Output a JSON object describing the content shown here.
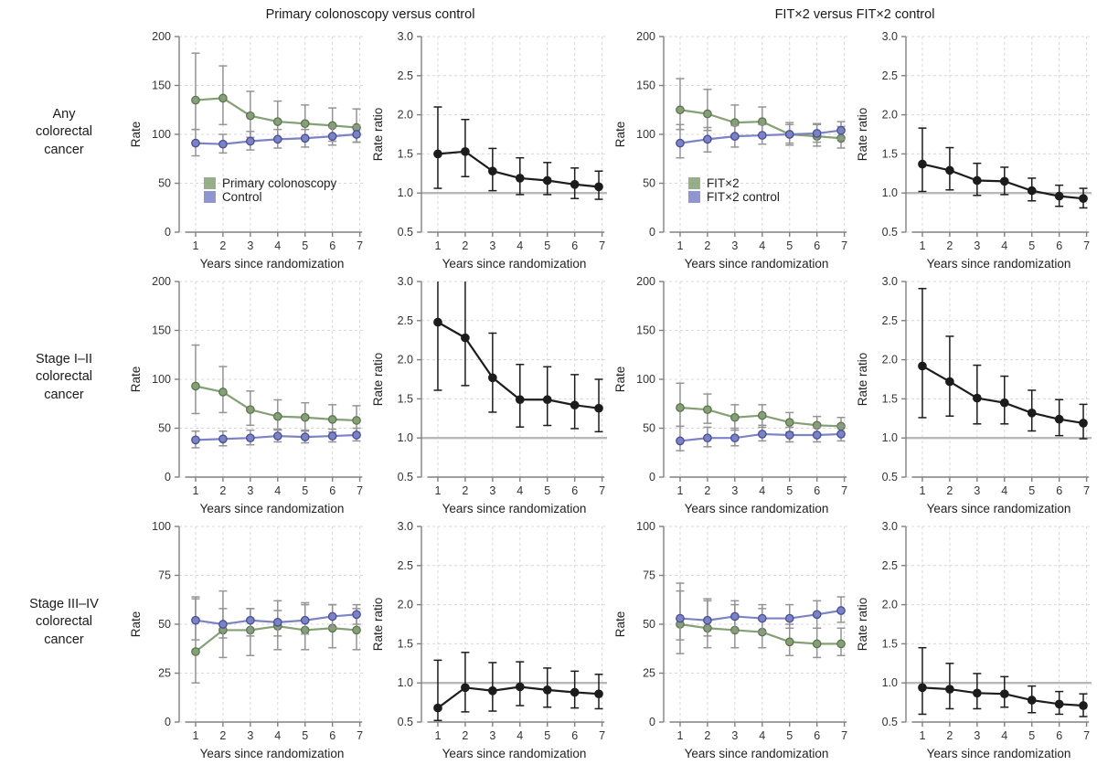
{
  "figure": {
    "group_titles": [
      "Primary colonoscopy versus control",
      "FIT×2 versus FIT×2 control"
    ],
    "row_labels": [
      "Any\ncolorectal\ncancer",
      "Stage I–II\ncolorectal\ncancer",
      "Stage III–IV\ncolorectal\ncancer"
    ],
    "colors": {
      "green": "#85a076",
      "green_marker_edge": "#5c7550",
      "blue": "#7b83c5",
      "blue_marker_fill": "#6f78bf",
      "blue_marker_edge": "#454e96",
      "black": "#1c1c1c",
      "error_gray": "#949494",
      "refline_gray": "#b8b8b8",
      "grid": "#d8d8d8",
      "axis": "#808080"
    }
  },
  "chart_data": [
    {
      "type": "line",
      "row": "Any colorectal cancer",
      "panel": "rate",
      "xlabel": "Years since randomization",
      "ylabel": "Rate",
      "x": [
        1,
        2,
        3,
        4,
        5,
        6,
        7
      ],
      "x_positions": [
        1,
        2,
        3,
        4,
        5,
        6,
        6.88
      ],
      "ylim": [
        0,
        200
      ],
      "yticks": [
        0,
        50,
        100,
        150,
        200
      ],
      "ydec": 0,
      "refline": null,
      "legend": {
        "x": 1.3,
        "y": [
          50,
          36
        ]
      },
      "series": [
        {
          "name": "Primary colonoscopy",
          "color": "#85a076",
          "medge": "#5c7550",
          "ecolor": "#949494",
          "values": [
            135,
            137,
            119,
            113,
            111,
            109,
            107
          ],
          "lower": [
            105,
            110,
            97,
            96,
            95,
            93,
            92
          ],
          "upper": [
            183,
            170,
            144,
            134,
            130,
            127,
            126
          ]
        },
        {
          "name": "Control",
          "color": "#7b83c5",
          "medge": "#454e96",
          "ecolor": "#949494",
          "values": [
            91,
            90,
            93,
            95,
            96,
            98,
            100
          ],
          "lower": [
            78,
            81,
            84,
            86,
            87,
            89,
            92
          ],
          "upper": [
            105,
            100,
            103,
            105,
            105,
            107,
            109
          ]
        }
      ]
    },
    {
      "type": "line",
      "row": "Any colorectal cancer",
      "panel": "rate ratio",
      "xlabel": "Years since randomization",
      "ylabel": "Rate ratio",
      "x": [
        1,
        2,
        3,
        4,
        5,
        6,
        7
      ],
      "x_positions": [
        1,
        2,
        3,
        4,
        5,
        6,
        6.88
      ],
      "ylim": [
        0.5,
        3.0
      ],
      "yticks": [
        0.5,
        1.0,
        1.5,
        2.0,
        2.5,
        3.0
      ],
      "ydec": 1,
      "refline": 1.0,
      "legend": null,
      "series": [
        {
          "name": "Rate ratio",
          "color": "#1c1c1c",
          "medge": "#1c1c1c",
          "ecolor": "#1c1c1c",
          "values": [
            1.5,
            1.53,
            1.28,
            1.19,
            1.16,
            1.11,
            1.08
          ],
          "lower": [
            1.06,
            1.21,
            1.03,
            0.98,
            0.98,
            0.93,
            0.92
          ],
          "upper": [
            2.1,
            1.94,
            1.57,
            1.45,
            1.39,
            1.32,
            1.28
          ]
        }
      ]
    },
    {
      "type": "line",
      "row": "Any colorectal cancer",
      "panel": "rate",
      "xlabel": "Years since randomization",
      "ylabel": "Rate",
      "x": [
        1,
        2,
        3,
        4,
        5,
        6,
        7
      ],
      "x_positions": [
        1,
        2,
        3,
        4,
        5,
        6,
        6.88
      ],
      "ylim": [
        0,
        200
      ],
      "yticks": [
        0,
        50,
        100,
        150,
        200
      ],
      "ydec": 0,
      "refline": null,
      "legend": {
        "x": 1.3,
        "y": [
          50,
          36
        ]
      },
      "series": [
        {
          "name": "FIT×2",
          "color": "#85a076",
          "medge": "#5c7550",
          "ecolor": "#949494",
          "values": [
            125,
            121,
            112,
            113,
            100,
            98,
            96
          ],
          "lower": [
            105,
            104,
            96,
            98,
            89,
            88,
            86
          ],
          "upper": [
            157,
            146,
            130,
            128,
            112,
            110,
            108
          ]
        },
        {
          "name": "FIT×2 control",
          "color": "#7b83c5",
          "medge": "#454e96",
          "ecolor": "#949494",
          "values": [
            91,
            95,
            98,
            99,
            100,
            101,
            104
          ],
          "lower": [
            76,
            82,
            87,
            90,
            91,
            92,
            95
          ],
          "upper": [
            110,
            107,
            109,
            110,
            110,
            111,
            113
          ]
        }
      ]
    },
    {
      "type": "line",
      "row": "Any colorectal cancer",
      "panel": "rate ratio",
      "xlabel": "Years since randomization",
      "ylabel": "Rate ratio",
      "x": [
        1,
        2,
        3,
        4,
        5,
        6,
        7
      ],
      "x_positions": [
        1,
        2,
        3,
        4,
        5,
        6,
        6.88
      ],
      "ylim": [
        0.5,
        3.0
      ],
      "yticks": [
        0.5,
        1.0,
        1.5,
        2.0,
        2.5,
        3.0
      ],
      "ydec": 1,
      "refline": 1.0,
      "legend": null,
      "series": [
        {
          "name": "Rate ratio",
          "color": "#1c1c1c",
          "medge": "#1c1c1c",
          "ecolor": "#1c1c1c",
          "values": [
            1.37,
            1.29,
            1.16,
            1.15,
            1.03,
            0.96,
            0.93
          ],
          "lower": [
            1.02,
            1.04,
            0.97,
            0.98,
            0.9,
            0.83,
            0.81
          ],
          "upper": [
            1.83,
            1.58,
            1.38,
            1.33,
            1.19,
            1.1,
            1.06
          ]
        }
      ]
    },
    {
      "type": "line",
      "row": "Stage I–II colorectal cancer",
      "panel": "rate",
      "xlabel": "Years since randomization",
      "ylabel": "Rate",
      "x": [
        1,
        2,
        3,
        4,
        5,
        6,
        7
      ],
      "x_positions": [
        1,
        2,
        3,
        4,
        5,
        6,
        6.88
      ],
      "ylim": [
        0,
        200
      ],
      "yticks": [
        0,
        50,
        100,
        150,
        200
      ],
      "ydec": 0,
      "refline": null,
      "legend": null,
      "series": [
        {
          "name": "Primary colonoscopy",
          "color": "#85a076",
          "medge": "#5c7550",
          "ecolor": "#949494",
          "values": [
            93,
            87,
            69,
            62,
            61,
            59,
            58
          ],
          "lower": [
            65,
            66,
            53,
            48,
            47,
            46,
            45
          ],
          "upper": [
            135,
            113,
            88,
            79,
            76,
            74,
            73
          ]
        },
        {
          "name": "Control",
          "color": "#7b83c5",
          "medge": "#454e96",
          "ecolor": "#949494",
          "values": [
            38,
            39,
            40,
            42,
            41,
            42,
            43
          ],
          "lower": [
            30,
            32,
            33,
            36,
            35,
            36,
            37
          ],
          "upper": [
            47,
            47,
            48,
            49,
            48,
            49,
            50
          ]
        }
      ]
    },
    {
      "type": "line",
      "row": "Stage I–II colorectal cancer",
      "panel": "rate ratio",
      "xlabel": "Years since randomization",
      "ylabel": "Rate ratio",
      "x": [
        1,
        2,
        3,
        4,
        5,
        6,
        7
      ],
      "x_positions": [
        1,
        2,
        3,
        4,
        5,
        6,
        6.88
      ],
      "ylim": [
        0.5,
        3.0
      ],
      "yticks": [
        0.5,
        1.0,
        1.5,
        2.0,
        2.5,
        3.0
      ],
      "ydec": 1,
      "refline": 1.0,
      "legend": null,
      "series": [
        {
          "name": "Rate ratio",
          "color": "#1c1c1c",
          "medge": "#1c1c1c",
          "ecolor": "#1c1c1c",
          "values": [
            2.48,
            2.28,
            1.77,
            1.49,
            1.49,
            1.42,
            1.38
          ],
          "lower": [
            1.61,
            1.67,
            1.33,
            1.14,
            1.16,
            1.12,
            1.08
          ],
          "upper": [
            3.02,
            3.1,
            2.34,
            1.94,
            1.91,
            1.81,
            1.75
          ]
        }
      ]
    },
    {
      "type": "line",
      "row": "Stage I–II colorectal cancer",
      "panel": "rate",
      "xlabel": "Years since randomization",
      "ylabel": "Rate",
      "x": [
        1,
        2,
        3,
        4,
        5,
        6,
        7
      ],
      "x_positions": [
        1,
        2,
        3,
        4,
        5,
        6,
        6.88
      ],
      "ylim": [
        0,
        200
      ],
      "yticks": [
        0,
        50,
        100,
        150,
        200
      ],
      "ydec": 0,
      "refline": null,
      "legend": null,
      "series": [
        {
          "name": "FIT×2",
          "color": "#85a076",
          "medge": "#5c7550",
          "ecolor": "#949494",
          "values": [
            71,
            69,
            61,
            63,
            56,
            53,
            52
          ],
          "lower": [
            52,
            55,
            48,
            51,
            46,
            44,
            43
          ],
          "upper": [
            96,
            85,
            74,
            74,
            66,
            62,
            61
          ]
        },
        {
          "name": "FIT×2 control",
          "color": "#7b83c5",
          "medge": "#454e96",
          "ecolor": "#949494",
          "values": [
            37,
            40,
            40,
            44,
            43,
            43,
            44
          ],
          "lower": [
            27,
            31,
            32,
            37,
            36,
            36,
            37
          ],
          "upper": [
            52,
            51,
            50,
            53,
            51,
            51,
            52
          ]
        }
      ]
    },
    {
      "type": "line",
      "row": "Stage I–II colorectal cancer",
      "panel": "rate ratio",
      "xlabel": "Years since randomization",
      "ylabel": "Rate ratio",
      "x": [
        1,
        2,
        3,
        4,
        5,
        6,
        7
      ],
      "x_positions": [
        1,
        2,
        3,
        4,
        5,
        6,
        6.88
      ],
      "ylim": [
        0.5,
        3.0
      ],
      "yticks": [
        0.5,
        1.0,
        1.5,
        2.0,
        2.5,
        3.0
      ],
      "ydec": 1,
      "refline": 1.0,
      "legend": null,
      "series": [
        {
          "name": "Rate ratio",
          "color": "#1c1c1c",
          "medge": "#1c1c1c",
          "ecolor": "#1c1c1c",
          "values": [
            1.92,
            1.72,
            1.51,
            1.45,
            1.32,
            1.24,
            1.19
          ],
          "lower": [
            1.26,
            1.28,
            1.18,
            1.18,
            1.09,
            1.03,
            0.99
          ],
          "upper": [
            2.91,
            2.3,
            1.93,
            1.79,
            1.61,
            1.49,
            1.43
          ]
        }
      ]
    },
    {
      "type": "line",
      "row": "Stage III–IV colorectal cancer",
      "panel": "rate",
      "xlabel": "Years since randomization",
      "ylabel": "Rate",
      "x": [
        1,
        2,
        3,
        4,
        5,
        6,
        7
      ],
      "x_positions": [
        1,
        2,
        3,
        4,
        5,
        6,
        6.88
      ],
      "ylim": [
        0,
        100
      ],
      "yticks": [
        0,
        25,
        50,
        75,
        100
      ],
      "ydec": 0,
      "refline": null,
      "legend": null,
      "series": [
        {
          "name": "Primary colonoscopy",
          "color": "#85a076",
          "medge": "#5c7550",
          "ecolor": "#949494",
          "values": [
            36,
            47,
            47,
            49,
            47,
            48,
            47
          ],
          "lower": [
            20,
            33,
            34,
            37,
            37,
            38,
            37
          ],
          "upper": [
            63,
            67,
            58,
            62,
            61,
            60,
            58
          ]
        },
        {
          "name": "Control",
          "color": "#7b83c5",
          "medge": "#454e96",
          "ecolor": "#949494",
          "values": [
            52,
            50,
            52,
            51,
            52,
            54,
            55
          ],
          "lower": [
            42,
            43,
            44,
            44,
            45,
            48,
            50
          ],
          "upper": [
            64,
            58,
            58,
            57,
            60,
            60,
            60
          ]
        }
      ]
    },
    {
      "type": "line",
      "row": "Stage III–IV colorectal cancer",
      "panel": "rate ratio",
      "xlabel": "Years since randomization",
      "ylabel": "Rate ratio",
      "x": [
        1,
        2,
        3,
        4,
        5,
        6,
        7
      ],
      "x_positions": [
        1,
        2,
        3,
        4,
        5,
        6,
        6.88
      ],
      "ylim": [
        0.5,
        3.0
      ],
      "yticks": [
        0.5,
        1.0,
        1.5,
        2.0,
        2.5,
        3.0
      ],
      "ydec": 1,
      "refline": 1.0,
      "legend": null,
      "series": [
        {
          "name": "Rate ratio",
          "color": "#1c1c1c",
          "medge": "#1c1c1c",
          "ecolor": "#1c1c1c",
          "values": [
            0.68,
            0.94,
            0.9,
            0.95,
            0.91,
            0.88,
            0.86
          ],
          "lower": [
            0.52,
            0.63,
            0.64,
            0.71,
            0.69,
            0.68,
            0.67
          ],
          "upper": [
            1.29,
            1.39,
            1.26,
            1.27,
            1.19,
            1.15,
            1.11
          ]
        }
      ]
    },
    {
      "type": "line",
      "row": "Stage III–IV colorectal cancer",
      "panel": "rate",
      "xlabel": "Years since randomization",
      "ylabel": "Rate",
      "x": [
        1,
        2,
        3,
        4,
        5,
        6,
        7
      ],
      "x_positions": [
        1,
        2,
        3,
        4,
        5,
        6,
        6.88
      ],
      "ylim": [
        0,
        100
      ],
      "yticks": [
        0,
        25,
        50,
        75,
        100
      ],
      "ydec": 0,
      "refline": null,
      "legend": null,
      "series": [
        {
          "name": "FIT×2",
          "color": "#85a076",
          "medge": "#5c7550",
          "ecolor": "#949494",
          "values": [
            50,
            48,
            47,
            46,
            41,
            40,
            40
          ],
          "lower": [
            35,
            38,
            38,
            38,
            34,
            33,
            34
          ],
          "upper": [
            67,
            62,
            60,
            58,
            50,
            48,
            48
          ]
        },
        {
          "name": "FIT×2 control",
          "color": "#7b83c5",
          "medge": "#454e96",
          "ecolor": "#949494",
          "values": [
            53,
            52,
            54,
            53,
            53,
            55,
            57
          ],
          "lower": [
            42,
            44,
            46,
            46,
            48,
            48,
            51
          ],
          "upper": [
            71,
            63,
            62,
            60,
            60,
            62,
            64
          ]
        }
      ]
    },
    {
      "type": "line",
      "row": "Stage III–IV colorectal cancer",
      "panel": "rate ratio",
      "xlabel": "Years since randomization",
      "ylabel": "Rate ratio",
      "x": [
        1,
        2,
        3,
        4,
        5,
        6,
        7
      ],
      "x_positions": [
        1,
        2,
        3,
        4,
        5,
        6,
        6.88
      ],
      "ylim": [
        0.5,
        3.0
      ],
      "yticks": [
        0.5,
        1.0,
        1.5,
        2.0,
        2.5,
        3.0
      ],
      "ydec": 1,
      "refline": 1.0,
      "legend": null,
      "series": [
        {
          "name": "Rate ratio",
          "color": "#1c1c1c",
          "medge": "#1c1c1c",
          "ecolor": "#1c1c1c",
          "values": [
            0.94,
            0.92,
            0.87,
            0.86,
            0.78,
            0.73,
            0.71
          ],
          "lower": [
            0.6,
            0.67,
            0.67,
            0.69,
            0.62,
            0.6,
            0.57
          ],
          "upper": [
            1.45,
            1.25,
            1.12,
            1.08,
            0.96,
            0.89,
            0.86
          ]
        }
      ]
    }
  ]
}
